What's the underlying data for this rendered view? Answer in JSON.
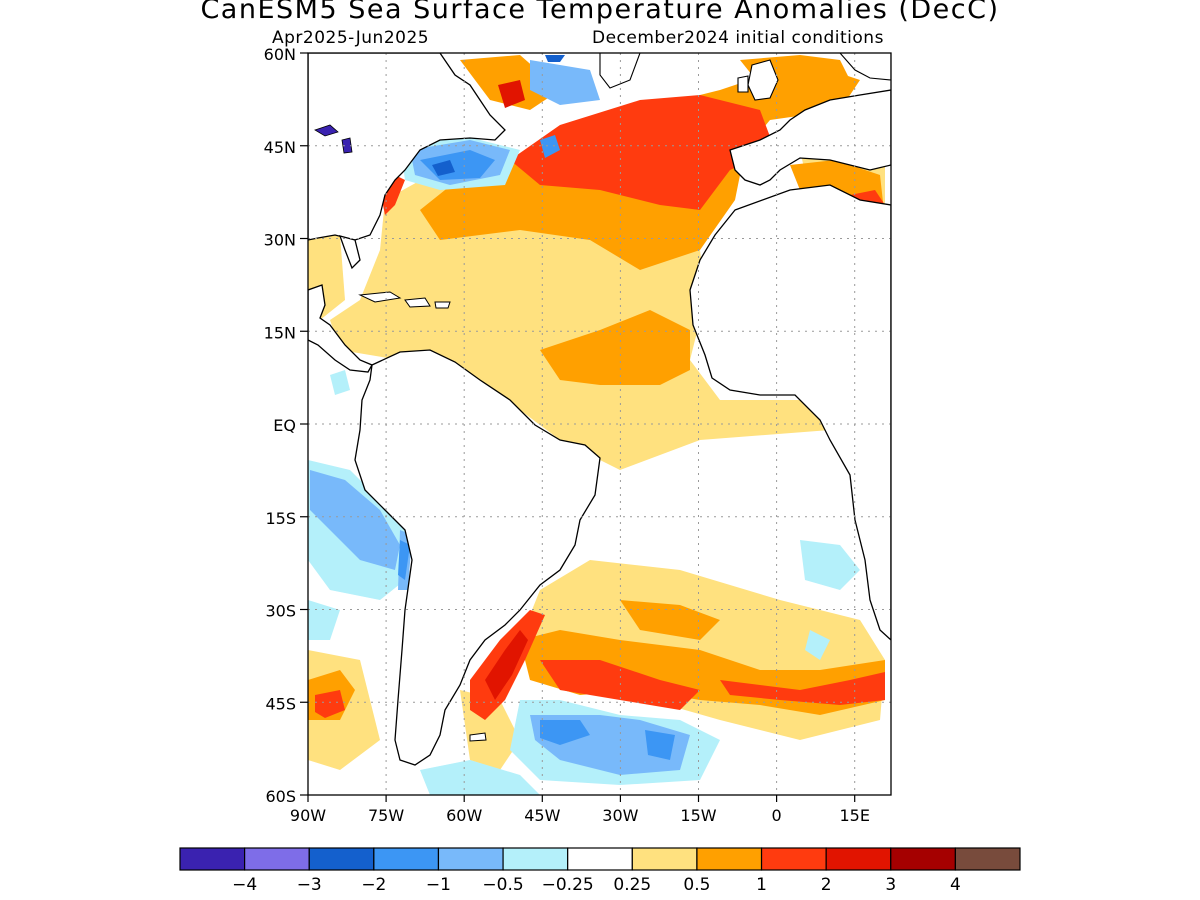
{
  "title": "CanESM5 Sea Surface Temperature Anomalies (DecC)",
  "subtitle_left": "Apr2025-Jun2025",
  "subtitle_right": "December2024 initial conditions",
  "map": {
    "lat_labels": [
      "60N",
      "45N",
      "30N",
      "15N",
      "EQ",
      "15S",
      "30S",
      "45S",
      "60S"
    ],
    "lon_labels": [
      "90W",
      "75W",
      "60W",
      "45W",
      "30W",
      "15W",
      "0",
      "15E"
    ],
    "grid": "dotted"
  },
  "colorbar": {
    "colors": [
      "#3a22b0",
      "#7e6de8",
      "#1460cd",
      "#3c96f4",
      "#78b9fa",
      "#b4f0fa",
      "#ffffff",
      "#ffe17f",
      "#ffa000",
      "#ff3b0f",
      "#e11400",
      "#a50000",
      "#784b3c"
    ],
    "labels": [
      "-4",
      "-3",
      "-2",
      "-1",
      "-0.5",
      "-0.25",
      "0.25",
      "0.5",
      "1",
      "2",
      "3",
      "4"
    ]
  }
}
